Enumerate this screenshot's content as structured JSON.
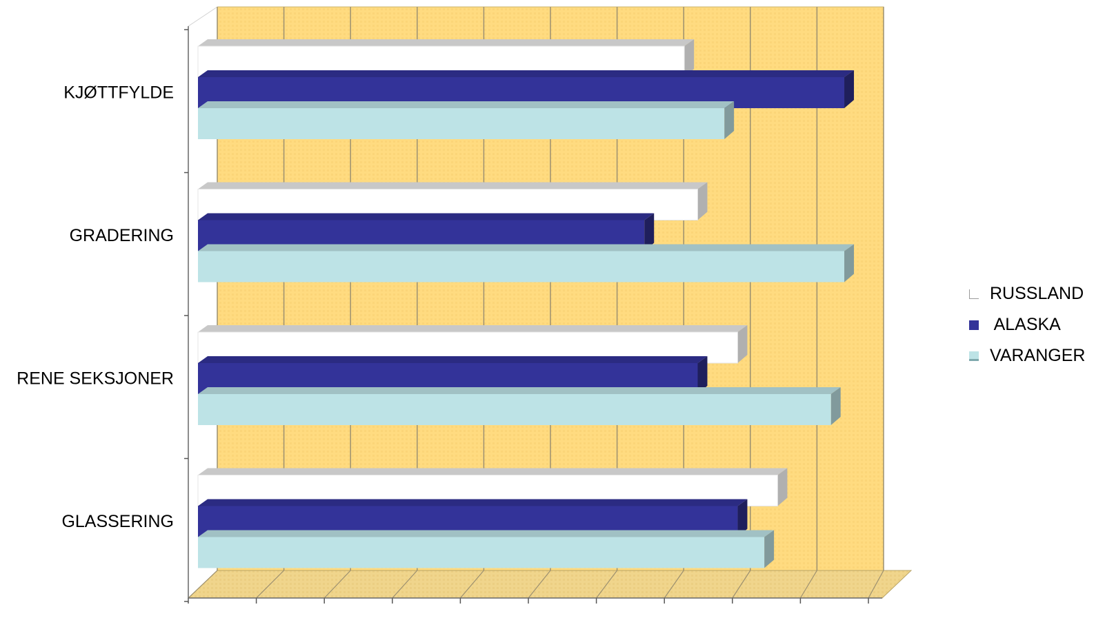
{
  "chart_data": {
    "type": "bar",
    "orientation": "horizontal",
    "three_d": true,
    "categories": [
      "KJØTTFYLDE",
      "GRADERING",
      "RENE SEKSJONER",
      "GLASSERING"
    ],
    "series": [
      {
        "name": "RUSSLAND",
        "color": "#ffffff",
        "values": [
          7.3,
          7.5,
          8.1,
          8.7
        ]
      },
      {
        "name": "ALASKA",
        "color": "#333399",
        "values": [
          9.7,
          6.7,
          7.5,
          8.1
        ]
      },
      {
        "name": "VARANGER",
        "color": "#bde3e6",
        "values": [
          7.9,
          9.7,
          9.5,
          8.5
        ]
      }
    ],
    "xlim": [
      0,
      10
    ],
    "grid": true,
    "legend_position": "right",
    "wall_color": "#ffd97a",
    "title": "",
    "xlabel": "",
    "ylabel": ""
  },
  "legend": {
    "items": [
      {
        "label": "RUSSLAND",
        "color": "#ffffff"
      },
      {
        "label": " ALASKA",
        "color": "#333399"
      },
      {
        "label": "VARANGER",
        "color": "#bde3e6"
      }
    ]
  }
}
